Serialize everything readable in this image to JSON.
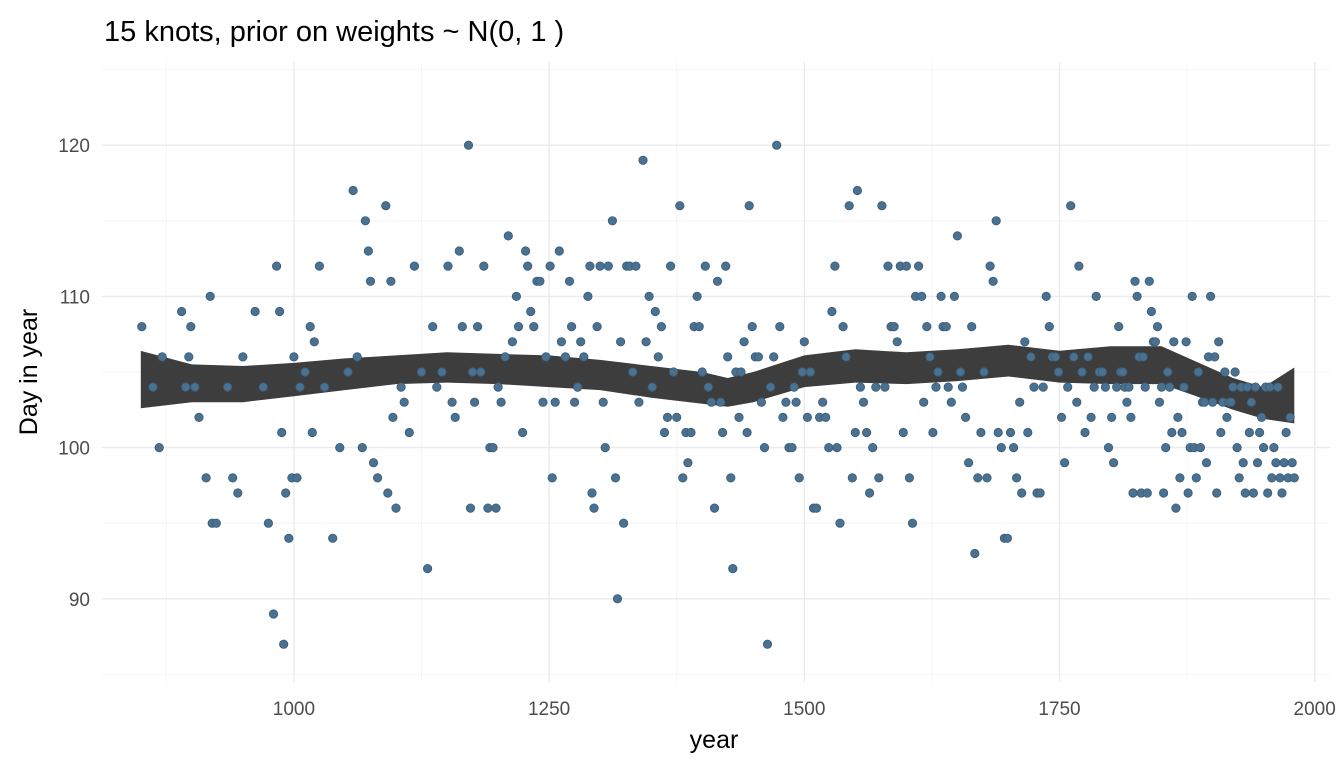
{
  "chart_data": {
    "type": "scatter",
    "title": "15  knots, prior on weights ~ N(0, 1 )",
    "xlabel": "year",
    "ylabel": "Day in year",
    "xlim": [
      812,
      2015
    ],
    "ylim": [
      84.5,
      125.5
    ],
    "x_ticks": [
      1000,
      1250,
      1500,
      1750,
      2000
    ],
    "y_ticks": [
      90,
      100,
      110,
      120
    ],
    "x_tick_labels": [
      "1000",
      "1250",
      "1500",
      "1750",
      "2000"
    ],
    "y_tick_labels": [
      "90",
      "100",
      "110",
      "120"
    ],
    "grid": true,
    "colors": {
      "points": "#4a7190",
      "band": "#3d3d3d",
      "grid": "#ebebeb"
    },
    "points": [
      [
        851,
        108
      ],
      [
        862,
        104
      ],
      [
        868,
        100
      ],
      [
        871,
        106
      ],
      [
        890,
        109
      ],
      [
        894,
        104
      ],
      [
        897,
        106
      ],
      [
        899,
        108
      ],
      [
        903,
        104
      ],
      [
        907,
        102
      ],
      [
        914,
        98
      ],
      [
        918,
        110
      ],
      [
        920,
        95
      ],
      [
        924,
        95
      ],
      [
        935,
        104
      ],
      [
        940,
        98
      ],
      [
        945,
        97
      ],
      [
        950,
        106
      ],
      [
        962,
        109
      ],
      [
        970,
        104
      ],
      [
        975,
        95
      ],
      [
        980,
        89
      ],
      [
        983,
        112
      ],
      [
        986,
        109
      ],
      [
        988,
        101
      ],
      [
        990,
        87
      ],
      [
        992,
        97
      ],
      [
        995,
        94
      ],
      [
        998,
        98
      ],
      [
        1000,
        106
      ],
      [
        1003,
        98
      ],
      [
        1006,
        104
      ],
      [
        1011,
        105
      ],
      [
        1016,
        108
      ],
      [
        1018,
        101
      ],
      [
        1020,
        107
      ],
      [
        1025,
        112
      ],
      [
        1030,
        104
      ],
      [
        1038,
        94
      ],
      [
        1045,
        100
      ],
      [
        1053,
        105
      ],
      [
        1058,
        117
      ],
      [
        1062,
        106
      ],
      [
        1067,
        100
      ],
      [
        1070,
        115
      ],
      [
        1073,
        113
      ],
      [
        1075,
        111
      ],
      [
        1078,
        99
      ],
      [
        1082,
        98
      ],
      [
        1090,
        116
      ],
      [
        1092,
        97
      ],
      [
        1095,
        111
      ],
      [
        1097,
        102
      ],
      [
        1100,
        96
      ],
      [
        1105,
        104
      ],
      [
        1108,
        103
      ],
      [
        1113,
        101
      ],
      [
        1118,
        112
      ],
      [
        1125,
        105
      ],
      [
        1131,
        92
      ],
      [
        1136,
        108
      ],
      [
        1140,
        104
      ],
      [
        1145,
        105
      ],
      [
        1151,
        112
      ],
      [
        1155,
        103
      ],
      [
        1158,
        102
      ],
      [
        1162,
        113
      ],
      [
        1165,
        108
      ],
      [
        1171,
        120
      ],
      [
        1173,
        96
      ],
      [
        1175,
        105
      ],
      [
        1177,
        103
      ],
      [
        1180,
        108
      ],
      [
        1183,
        105
      ],
      [
        1186,
        112
      ],
      [
        1190,
        96
      ],
      [
        1192,
        100
      ],
      [
        1195,
        100
      ],
      [
        1198,
        96
      ],
      [
        1200,
        104
      ],
      [
        1203,
        103
      ],
      [
        1207,
        106
      ],
      [
        1210,
        114
      ],
      [
        1214,
        107
      ],
      [
        1218,
        110
      ],
      [
        1220,
        108
      ],
      [
        1224,
        101
      ],
      [
        1227,
        113
      ],
      [
        1229,
        112
      ],
      [
        1232,
        109
      ],
      [
        1235,
        108
      ],
      [
        1238,
        111
      ],
      [
        1241,
        111
      ],
      [
        1244,
        103
      ],
      [
        1247,
        106
      ],
      [
        1251,
        112
      ],
      [
        1253,
        98
      ],
      [
        1256,
        103
      ],
      [
        1260,
        113
      ],
      [
        1262,
        107
      ],
      [
        1266,
        106
      ],
      [
        1270,
        111
      ],
      [
        1272,
        108
      ],
      [
        1275,
        103
      ],
      [
        1278,
        104
      ],
      [
        1281,
        107
      ],
      [
        1284,
        106
      ],
      [
        1288,
        110
      ],
      [
        1290,
        112
      ],
      [
        1292,
        97
      ],
      [
        1294,
        96
      ],
      [
        1297,
        108
      ],
      [
        1300,
        112
      ],
      [
        1303,
        103
      ],
      [
        1305,
        100
      ],
      [
        1308,
        112
      ],
      [
        1312,
        115
      ],
      [
        1315,
        98
      ],
      [
        1317,
        90
      ],
      [
        1320,
        107
      ],
      [
        1323,
        95
      ],
      [
        1326,
        112
      ],
      [
        1329,
        112
      ],
      [
        1332,
        105
      ],
      [
        1335,
        112
      ],
      [
        1338,
        103
      ],
      [
        1342,
        119
      ],
      [
        1345,
        107
      ],
      [
        1348,
        110
      ],
      [
        1351,
        104
      ],
      [
        1354,
        109
      ],
      [
        1357,
        106
      ],
      [
        1360,
        108
      ],
      [
        1363,
        101
      ],
      [
        1366,
        102
      ],
      [
        1369,
        112
      ],
      [
        1372,
        105
      ],
      [
        1375,
        102
      ],
      [
        1378,
        116
      ],
      [
        1381,
        98
      ],
      [
        1384,
        101
      ],
      [
        1386,
        99
      ],
      [
        1389,
        101
      ],
      [
        1392,
        108
      ],
      [
        1395,
        110
      ],
      [
        1397,
        108
      ],
      [
        1400,
        105
      ],
      [
        1403,
        112
      ],
      [
        1406,
        104
      ],
      [
        1409,
        103
      ],
      [
        1412,
        96
      ],
      [
        1415,
        111
      ],
      [
        1418,
        103
      ],
      [
        1420,
        101
      ],
      [
        1423,
        112
      ],
      [
        1425,
        106
      ],
      [
        1428,
        98
      ],
      [
        1430,
        92
      ],
      [
        1433,
        105
      ],
      [
        1436,
        102
      ],
      [
        1438,
        105
      ],
      [
        1441,
        107
      ],
      [
        1444,
        101
      ],
      [
        1446,
        116
      ],
      [
        1449,
        108
      ],
      [
        1452,
        106
      ],
      [
        1455,
        106
      ],
      [
        1458,
        103
      ],
      [
        1461,
        100
      ],
      [
        1464,
        87
      ],
      [
        1467,
        104
      ],
      [
        1470,
        106
      ],
      [
        1473,
        120
      ],
      [
        1476,
        108
      ],
      [
        1479,
        102
      ],
      [
        1482,
        103
      ],
      [
        1485,
        100
      ],
      [
        1488,
        100
      ],
      [
        1490,
        104
      ],
      [
        1492,
        103
      ],
      [
        1495,
        98
      ],
      [
        1498,
        105
      ],
      [
        1500,
        107
      ],
      [
        1503,
        102
      ],
      [
        1506,
        105
      ],
      [
        1509,
        96
      ],
      [
        1512,
        96
      ],
      [
        1515,
        102
      ],
      [
        1518,
        103
      ],
      [
        1521,
        102
      ],
      [
        1524,
        100
      ],
      [
        1527,
        109
      ],
      [
        1530,
        112
      ],
      [
        1532,
        100
      ],
      [
        1535,
        95
      ],
      [
        1538,
        108
      ],
      [
        1541,
        106
      ],
      [
        1544,
        116
      ],
      [
        1547,
        98
      ],
      [
        1550,
        101
      ],
      [
        1552,
        117
      ],
      [
        1555,
        104
      ],
      [
        1558,
        103
      ],
      [
        1561,
        101
      ],
      [
        1564,
        97
      ],
      [
        1567,
        100
      ],
      [
        1570,
        104
      ],
      [
        1573,
        98
      ],
      [
        1576,
        116
      ],
      [
        1579,
        104
      ],
      [
        1582,
        112
      ],
      [
        1585,
        108
      ],
      [
        1588,
        108
      ],
      [
        1591,
        107
      ],
      [
        1594,
        112
      ],
      [
        1597,
        101
      ],
      [
        1600,
        112
      ],
      [
        1603,
        98
      ],
      [
        1606,
        95
      ],
      [
        1609,
        110
      ],
      [
        1612,
        112
      ],
      [
        1615,
        110
      ],
      [
        1617,
        103
      ],
      [
        1620,
        108
      ],
      [
        1623,
        106
      ],
      [
        1626,
        101
      ],
      [
        1629,
        104
      ],
      [
        1631,
        105
      ],
      [
        1634,
        110
      ],
      [
        1636,
        108
      ],
      [
        1639,
        108
      ],
      [
        1641,
        104
      ],
      [
        1644,
        103
      ],
      [
        1647,
        110
      ],
      [
        1650,
        114
      ],
      [
        1653,
        105
      ],
      [
        1655,
        104
      ],
      [
        1658,
        102
      ],
      [
        1661,
        99
      ],
      [
        1664,
        108
      ],
      [
        1667,
        93
      ],
      [
        1670,
        98
      ],
      [
        1673,
        101
      ],
      [
        1676,
        105
      ],
      [
        1679,
        98
      ],
      [
        1682,
        112
      ],
      [
        1685,
        111
      ],
      [
        1688,
        115
      ],
      [
        1690,
        101
      ],
      [
        1693,
        100
      ],
      [
        1696,
        94
      ],
      [
        1699,
        94
      ],
      [
        1702,
        101
      ],
      [
        1705,
        100
      ],
      [
        1708,
        98
      ],
      [
        1711,
        103
      ],
      [
        1713,
        97
      ],
      [
        1716,
        107
      ],
      [
        1719,
        101
      ],
      [
        1722,
        106
      ],
      [
        1725,
        104
      ],
      [
        1728,
        97
      ],
      [
        1731,
        97
      ],
      [
        1734,
        104
      ],
      [
        1737,
        110
      ],
      [
        1740,
        108
      ],
      [
        1743,
        106
      ],
      [
        1746,
        106
      ],
      [
        1749,
        105
      ],
      [
        1752,
        102
      ],
      [
        1755,
        99
      ],
      [
        1758,
        104
      ],
      [
        1761,
        116
      ],
      [
        1764,
        106
      ],
      [
        1767,
        103
      ],
      [
        1769,
        112
      ],
      [
        1772,
        105
      ],
      [
        1775,
        101
      ],
      [
        1778,
        106
      ],
      [
        1781,
        102
      ],
      [
        1784,
        104
      ],
      [
        1786,
        110
      ],
      [
        1789,
        105
      ],
      [
        1792,
        105
      ],
      [
        1795,
        104
      ],
      [
        1798,
        100
      ],
      [
        1801,
        102
      ],
      [
        1803,
        99
      ],
      [
        1806,
        104
      ],
      [
        1808,
        108
      ],
      [
        1810,
        105
      ],
      [
        1812,
        105
      ],
      [
        1814,
        104
      ],
      [
        1816,
        103
      ],
      [
        1818,
        104
      ],
      [
        1820,
        102
      ],
      [
        1822,
        97
      ],
      [
        1824,
        111
      ],
      [
        1826,
        110
      ],
      [
        1828,
        106
      ],
      [
        1830,
        97
      ],
      [
        1832,
        106
      ],
      [
        1834,
        104
      ],
      [
        1836,
        97
      ],
      [
        1838,
        111
      ],
      [
        1840,
        109
      ],
      [
        1842,
        107
      ],
      [
        1844,
        107
      ],
      [
        1846,
        108
      ],
      [
        1848,
        103
      ],
      [
        1850,
        104
      ],
      [
        1852,
        97
      ],
      [
        1854,
        100
      ],
      [
        1856,
        105
      ],
      [
        1858,
        104
      ],
      [
        1860,
        101
      ],
      [
        1862,
        107
      ],
      [
        1864,
        96
      ],
      [
        1866,
        102
      ],
      [
        1868,
        98
      ],
      [
        1870,
        101
      ],
      [
        1872,
        104
      ],
      [
        1874,
        107
      ],
      [
        1876,
        97
      ],
      [
        1878,
        100
      ],
      [
        1880,
        110
      ],
      [
        1882,
        100
      ],
      [
        1884,
        98
      ],
      [
        1886,
        105
      ],
      [
        1888,
        100
      ],
      [
        1890,
        103
      ],
      [
        1892,
        103
      ],
      [
        1894,
        99
      ],
      [
        1896,
        106
      ],
      [
        1898,
        110
      ],
      [
        1900,
        103
      ],
      [
        1902,
        106
      ],
      [
        1904,
        97
      ],
      [
        1906,
        107
      ],
      [
        1908,
        101
      ],
      [
        1910,
        103
      ],
      [
        1912,
        105
      ],
      [
        1914,
        102
      ],
      [
        1916,
        103
      ],
      [
        1918,
        103
      ],
      [
        1920,
        104
      ],
      [
        1922,
        105
      ],
      [
        1924,
        100
      ],
      [
        1926,
        98
      ],
      [
        1928,
        104
      ],
      [
        1930,
        99
      ],
      [
        1932,
        97
      ],
      [
        1934,
        104
      ],
      [
        1936,
        101
      ],
      [
        1938,
        103
      ],
      [
        1940,
        97
      ],
      [
        1942,
        104
      ],
      [
        1944,
        99
      ],
      [
        1946,
        101
      ],
      [
        1948,
        102
      ],
      [
        1950,
        100
      ],
      [
        1952,
        104
      ],
      [
        1954,
        97
      ],
      [
        1956,
        104
      ],
      [
        1958,
        98
      ],
      [
        1960,
        100
      ],
      [
        1962,
        99
      ],
      [
        1964,
        104
      ],
      [
        1966,
        98
      ],
      [
        1968,
        97
      ],
      [
        1970,
        99
      ],
      [
        1972,
        101
      ],
      [
        1974,
        98
      ],
      [
        1976,
        102
      ],
      [
        1978,
        99
      ],
      [
        1980,
        98
      ]
    ],
    "band": {
      "x": [
        850,
        900,
        950,
        1000,
        1050,
        1100,
        1150,
        1200,
        1250,
        1300,
        1350,
        1400,
        1425,
        1450,
        1500,
        1550,
        1600,
        1650,
        1700,
        1750,
        1800,
        1850,
        1880,
        1920,
        1950,
        1980
      ],
      "lower": [
        102.6,
        103.0,
        103.0,
        103.4,
        103.8,
        104.2,
        104.3,
        104.2,
        104.0,
        103.8,
        103.3,
        102.9,
        102.7,
        103.0,
        104.0,
        104.3,
        104.2,
        104.4,
        104.7,
        104.3,
        104.2,
        104.2,
        103.5,
        102.5,
        101.9,
        101.6
      ],
      "upper": [
        106.4,
        105.5,
        105.4,
        105.6,
        105.9,
        106.1,
        106.3,
        106.2,
        106.1,
        105.8,
        105.4,
        105.0,
        104.6,
        105.0,
        106.1,
        106.5,
        106.3,
        106.5,
        106.8,
        106.4,
        106.7,
        106.7,
        105.8,
        104.6,
        104.0,
        105.3
      ]
    }
  }
}
